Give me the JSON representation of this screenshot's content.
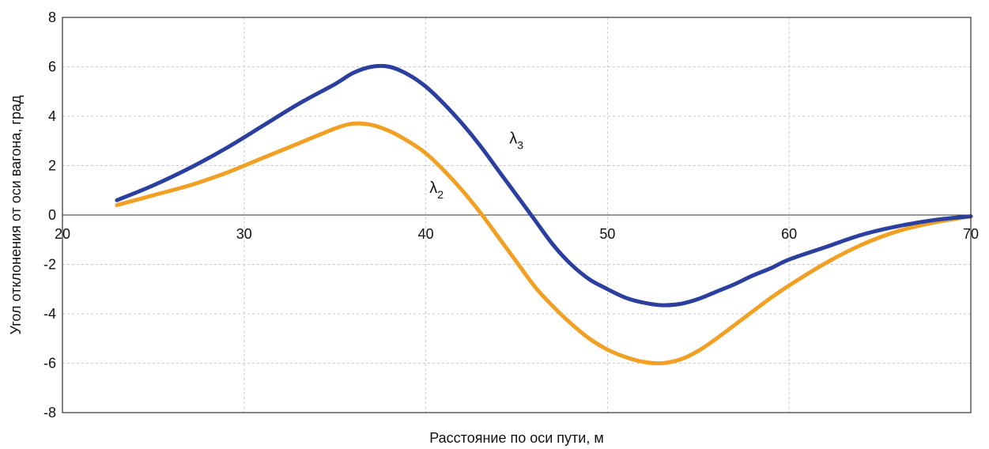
{
  "chart_data": {
    "type": "line",
    "xlabel": "Расстояние по оси пути, м",
    "ylabel": "Угол отклонения от оси вагона, град",
    "xlim": [
      20,
      70
    ],
    "ylim": [
      -8,
      8
    ],
    "xticks": [
      20,
      30,
      40,
      50,
      60,
      70
    ],
    "yticks": [
      -8,
      -6,
      -4,
      -2,
      0,
      2,
      4,
      6,
      8
    ],
    "grid": true,
    "series": [
      {
        "name": "λ3",
        "label_main": "λ",
        "label_sub": "3",
        "color": "#2b3f9e",
        "label_at": [
          44.6,
          2.9
        ],
        "points": [
          [
            23,
            0.6
          ],
          [
            25,
            1.2
          ],
          [
            27,
            1.9
          ],
          [
            29,
            2.7
          ],
          [
            31,
            3.6
          ],
          [
            33,
            4.5
          ],
          [
            35,
            5.3
          ],
          [
            36,
            5.75
          ],
          [
            37,
            6.0
          ],
          [
            38,
            6.0
          ],
          [
            39,
            5.7
          ],
          [
            40,
            5.2
          ],
          [
            41,
            4.5
          ],
          [
            42,
            3.7
          ],
          [
            43,
            2.8
          ],
          [
            44,
            1.8
          ],
          [
            45,
            0.8
          ],
          [
            46,
            -0.2
          ],
          [
            47,
            -1.2
          ],
          [
            48,
            -2.0
          ],
          [
            49,
            -2.6
          ],
          [
            50,
            -3.0
          ],
          [
            51,
            -3.35
          ],
          [
            52,
            -3.55
          ],
          [
            53,
            -3.65
          ],
          [
            54,
            -3.6
          ],
          [
            55,
            -3.4
          ],
          [
            56,
            -3.1
          ],
          [
            57,
            -2.8
          ],
          [
            58,
            -2.45
          ],
          [
            59,
            -2.15
          ],
          [
            60,
            -1.8
          ],
          [
            62,
            -1.3
          ],
          [
            64,
            -0.8
          ],
          [
            66,
            -0.45
          ],
          [
            68,
            -0.2
          ],
          [
            70,
            -0.05
          ]
        ]
      },
      {
        "name": "λ2",
        "label_main": "λ",
        "label_sub": "2",
        "color": "#f2a024",
        "label_at": [
          40.2,
          0.9
        ],
        "points": [
          [
            23,
            0.4
          ],
          [
            25,
            0.8
          ],
          [
            27,
            1.2
          ],
          [
            29,
            1.7
          ],
          [
            31,
            2.3
          ],
          [
            33,
            2.9
          ],
          [
            35,
            3.5
          ],
          [
            36,
            3.7
          ],
          [
            37,
            3.65
          ],
          [
            38,
            3.4
          ],
          [
            39,
            3.0
          ],
          [
            40,
            2.5
          ],
          [
            41,
            1.8
          ],
          [
            42,
            1.0
          ],
          [
            43,
            0.1
          ],
          [
            44,
            -0.9
          ],
          [
            45,
            -1.9
          ],
          [
            46,
            -2.9
          ],
          [
            47,
            -3.7
          ],
          [
            48,
            -4.4
          ],
          [
            49,
            -5.0
          ],
          [
            50,
            -5.45
          ],
          [
            51,
            -5.75
          ],
          [
            52,
            -5.95
          ],
          [
            53,
            -6.0
          ],
          [
            54,
            -5.85
          ],
          [
            55,
            -5.5
          ],
          [
            56,
            -5.0
          ],
          [
            57,
            -4.45
          ],
          [
            58,
            -3.9
          ],
          [
            59,
            -3.35
          ],
          [
            60,
            -2.85
          ],
          [
            62,
            -1.95
          ],
          [
            64,
            -1.2
          ],
          [
            66,
            -0.65
          ],
          [
            68,
            -0.3
          ],
          [
            70,
            -0.05
          ]
        ]
      }
    ]
  }
}
